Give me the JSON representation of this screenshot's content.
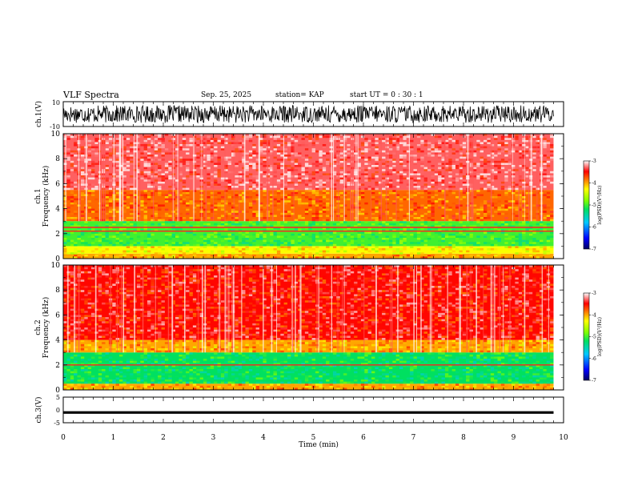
{
  "header": {
    "title": "VLF Spectra",
    "date": "Sep. 25, 2025",
    "station": "station= KAP",
    "start": "start  UT =   0 : 30 : 1"
  },
  "chart_data": [
    {
      "type": "line",
      "name": "ch.1 waveform",
      "ylabel": "ch.1(V)",
      "ylim": [
        -10,
        10
      ],
      "yticks": [
        "10",
        "-10"
      ],
      "description_values": "noisy voltage trace roughly between -8 and 8 V over 0-9.8 min",
      "x_range": [
        0,
        9.8
      ],
      "trace_amplitude": 7,
      "color": "#000000"
    },
    {
      "type": "heatmap",
      "name": "ch.1 spectrogram",
      "ylabel_top": "ch.1",
      "ylabel": "Frequency (kHz)",
      "ylim": [
        0,
        10
      ],
      "yticks": [
        "0",
        "2",
        "4",
        "6",
        "8",
        "10"
      ],
      "x_range": [
        0,
        9.8
      ],
      "bands": [
        {
          "from_khz": 0.0,
          "to_khz": 0.4,
          "level": -4.0
        },
        {
          "from_khz": 0.4,
          "to_khz": 1.0,
          "level": -4.3
        },
        {
          "from_khz": 1.0,
          "to_khz": 3.0,
          "level": -5.0
        },
        {
          "from_khz": 3.0,
          "to_khz": 5.5,
          "level": -3.8
        },
        {
          "from_khz": 5.5,
          "to_khz": 10.0,
          "level": -3.3
        }
      ],
      "line_khz": [
        2.2,
        2.5
      ],
      "colorbar": {
        "label": "log(PSD)(V²/Hz)",
        "range": [
          -7,
          -3
        ],
        "ticks": [
          "-3",
          "-4",
          "-5",
          "-6",
          "-7"
        ]
      }
    },
    {
      "type": "heatmap",
      "name": "ch.2 spectrogram",
      "ylabel_top": "ch.2",
      "ylabel": "Frequency (kHz)",
      "ylim": [
        0,
        10
      ],
      "yticks": [
        "0",
        "2",
        "4",
        "6",
        "8",
        "10"
      ],
      "x_range": [
        0,
        9.8
      ],
      "bands": [
        {
          "from_khz": 0.0,
          "to_khz": 0.5,
          "level": -4.0
        },
        {
          "from_khz": 0.5,
          "to_khz": 3.0,
          "level": -5.2
        },
        {
          "from_khz": 3.0,
          "to_khz": 4.0,
          "level": -4.0
        },
        {
          "from_khz": 4.0,
          "to_khz": 10.0,
          "level": -3.5
        }
      ],
      "line_khz": [
        2.0
      ],
      "colorbar": {
        "label": "log(PSD)(V²/Hz)",
        "range": [
          -7,
          -3
        ],
        "ticks": [
          "-3",
          "-4",
          "-5",
          "-6",
          "-7"
        ]
      }
    },
    {
      "type": "line",
      "name": "ch.3 waveform",
      "ylabel": "ch.3(V)",
      "ylim": [
        -5,
        5
      ],
      "yticks": [
        "5",
        "0",
        "-5"
      ],
      "x_range": [
        0,
        9.8
      ],
      "trace_center": -1.0,
      "trace_halfwidth": 0.5,
      "color": "#000000"
    }
  ],
  "xaxis": {
    "label": "Time (min)",
    "range": [
      0,
      10
    ],
    "ticks": [
      "0",
      "1",
      "2",
      "3",
      "4",
      "5",
      "6",
      "7",
      "8",
      "9",
      "10"
    ]
  }
}
